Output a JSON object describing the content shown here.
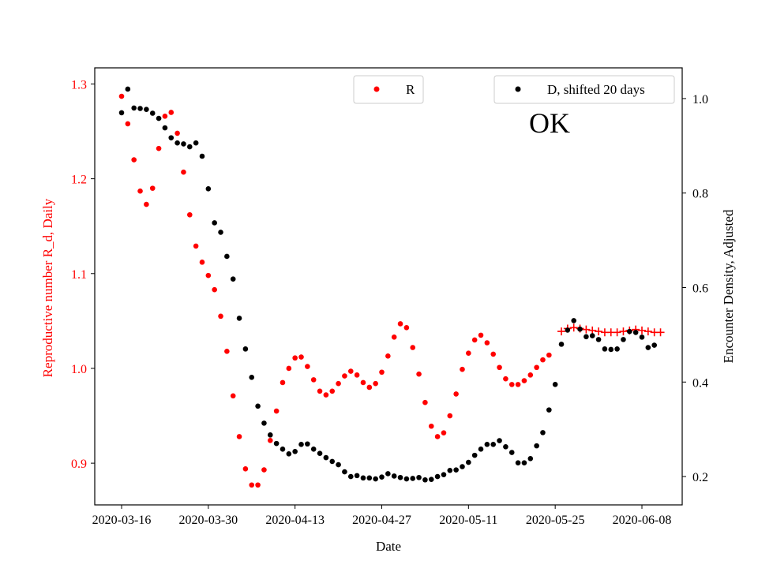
{
  "chart_data": {
    "type": "scatter",
    "title": "",
    "annotation": "OK",
    "xlabel": "Date",
    "ylabel_left": "Reproductive number R_d, Daily",
    "ylabel_right": "Encounter Density, Adjusted",
    "x_range": [
      "2020-03-16",
      "2020-06-11"
    ],
    "x_ticks": [
      "2020-03-16",
      "2020-03-30",
      "2020-04-13",
      "2020-04-27",
      "2020-05-11",
      "2020-05-25",
      "2020-06-08"
    ],
    "ylim_left": [
      0.856,
      1.317
    ],
    "yticks_left": [
      "0.9",
      "1.0",
      "1.1",
      "1.2",
      "1.3"
    ],
    "ylim_right": [
      0.14,
      1.065
    ],
    "yticks_right": [
      "0.2",
      "0.4",
      "0.6",
      "0.8",
      "1.0"
    ],
    "grid": false,
    "colors": {
      "r": "#ff0000",
      "d": "#000000",
      "left_axis_text": "#ff0000"
    },
    "legends": [
      {
        "position": "top-center",
        "label": "R",
        "color": "#ff0000"
      },
      {
        "position": "top-right",
        "label": "D, shifted 20 days",
        "color": "#000000"
      }
    ],
    "series": [
      {
        "name": "R",
        "axis": "left",
        "marker": "dot",
        "color": "#ff0000",
        "start_date": "2020-03-16",
        "values": [
          1.287,
          1.258,
          1.22,
          1.187,
          1.173,
          1.19,
          1.232,
          1.266,
          1.27,
          1.248,
          1.207,
          1.162,
          1.129,
          1.112,
          1.098,
          1.083,
          1.055,
          1.018,
          0.971,
          0.928,
          0.894,
          0.877,
          0.877,
          0.893,
          0.924,
          0.955,
          0.985,
          1.0,
          1.011,
          1.012,
          1.002,
          0.988,
          0.976,
          0.972,
          0.976,
          0.984,
          0.992,
          0.997,
          0.993,
          0.985,
          0.98,
          0.984,
          0.996,
          1.013,
          1.033,
          1.047,
          1.043,
          1.022,
          0.994,
          0.964,
          0.939,
          0.928,
          0.932,
          0.95,
          0.973,
          0.999,
          1.016,
          1.03,
          1.035,
          1.027,
          1.015,
          1.001,
          0.989,
          0.983,
          0.983,
          0.987,
          0.993,
          1.001,
          1.009,
          1.014
        ]
      },
      {
        "name": "",
        "axis": "left",
        "marker": "plus",
        "color": "#ff0000",
        "start_date": "2020-05-26",
        "values": [
          1.039,
          1.042,
          1.043,
          1.042,
          1.041,
          1.04,
          1.039,
          1.038,
          1.038,
          1.038,
          1.039,
          1.04,
          1.041,
          1.04,
          1.039,
          1.038,
          1.038
        ]
      },
      {
        "name": "D, shifted 20 days",
        "axis": "right",
        "marker": "dot",
        "color": "#000000",
        "start_date": "2020-03-16",
        "values": [
          0.97,
          1.02,
          0.98,
          0.979,
          0.977,
          0.969,
          0.958,
          0.938,
          0.917,
          0.906,
          0.904,
          0.898,
          0.906,
          0.878,
          0.809,
          0.737,
          0.717,
          0.666,
          0.618,
          0.535,
          0.47,
          0.41,
          0.349,
          0.313,
          0.288,
          0.27,
          0.258,
          0.248,
          0.253,
          0.268,
          0.269,
          0.258,
          0.249,
          0.24,
          0.232,
          0.225,
          0.21,
          0.2,
          0.202,
          0.197,
          0.197,
          0.195,
          0.199,
          0.206,
          0.201,
          0.198,
          0.195,
          0.196,
          0.198,
          0.193,
          0.194,
          0.2,
          0.204,
          0.213,
          0.214,
          0.221,
          0.23,
          0.245,
          0.258,
          0.268,
          0.268,
          0.276,
          0.263,
          0.251,
          0.229,
          0.229,
          0.238,
          0.265,
          0.293,
          0.341,
          0.395,
          0.48,
          0.51,
          0.53,
          0.512,
          0.496,
          0.498,
          0.49,
          0.47,
          0.469,
          0.47,
          0.49,
          0.507,
          0.505,
          0.495,
          0.473,
          0.478
        ]
      }
    ]
  }
}
